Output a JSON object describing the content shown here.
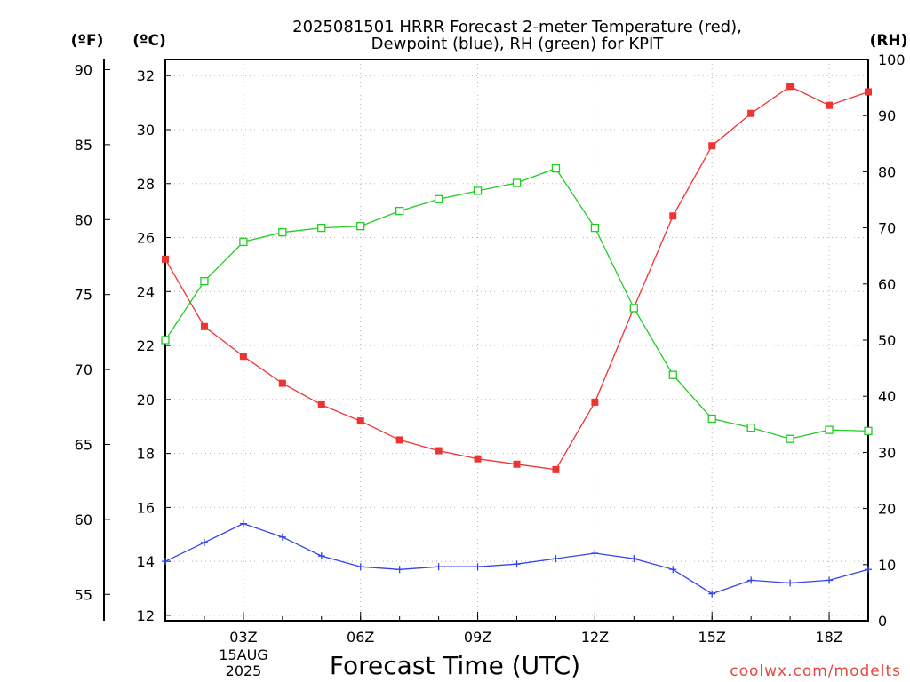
{
  "chart_data": {
    "type": "line",
    "title_line1": "2025081501 HRRR Forecast 2-meter Temperature (red),",
    "title_line2": "Dewpoint (blue), RH (green) for KPIT",
    "xlabel": "Forecast Time (UTC)",
    "credit": "coolwx.com/modelts",
    "units": {
      "fahrenheit": "(ºF)",
      "celsius": "(ºC)",
      "rh": "(RH)"
    },
    "x_hours": [
      1,
      2,
      3,
      4,
      5,
      6,
      7,
      8,
      9,
      10,
      11,
      12,
      13,
      14,
      15,
      16,
      17,
      18,
      19
    ],
    "x_ticks": [
      {
        "hour": 3,
        "label": "03Z"
      },
      {
        "hour": 6,
        "label": "06Z"
      },
      {
        "hour": 9,
        "label": "09Z"
      },
      {
        "hour": 12,
        "label": "12Z"
      },
      {
        "hour": 15,
        "label": "15Z"
      },
      {
        "hour": 18,
        "label": "18Z"
      }
    ],
    "date_label": [
      "15AUG",
      "2025"
    ],
    "xlim": [
      1,
      19
    ],
    "celsius_axis": {
      "ylim": [
        11.8,
        32.6
      ],
      "ticks": [
        12,
        14,
        16,
        18,
        20,
        22,
        24,
        26,
        28,
        30,
        32
      ]
    },
    "fahrenheit_axis": {
      "ticks": [
        55,
        60,
        65,
        70,
        75,
        80,
        85,
        90
      ]
    },
    "rh_axis": {
      "ylim": [
        0,
        100
      ],
      "ticks": [
        0,
        10,
        20,
        30,
        40,
        50,
        60,
        70,
        80,
        90,
        100
      ]
    },
    "grid": true,
    "series": [
      {
        "key": "temperature",
        "axis": "celsius",
        "color": "#ee3333",
        "marker": "filled-square",
        "values": [
          25.2,
          22.7,
          21.6,
          20.6,
          19.8,
          19.2,
          18.5,
          18.1,
          17.8,
          17.6,
          17.4,
          19.9,
          23.4,
          26.8,
          29.4,
          30.6,
          31.6,
          30.9,
          31.4
        ]
      },
      {
        "key": "dewpoint",
        "axis": "celsius",
        "color": "#3344ee",
        "marker": "plus",
        "values": [
          14.0,
          14.7,
          15.4,
          14.9,
          14.2,
          13.8,
          13.7,
          13.8,
          13.8,
          13.9,
          14.1,
          14.3,
          14.1,
          13.7,
          12.8,
          13.3,
          13.2,
          13.3,
          13.7
        ]
      },
      {
        "key": "rh",
        "axis": "rh",
        "color": "#22cc22",
        "marker": "open-square",
        "values": [
          50.0,
          60.5,
          67.5,
          69.2,
          70.0,
          70.3,
          73.0,
          75.1,
          76.6,
          78.0,
          80.6,
          70.0,
          55.7,
          43.8,
          36.0,
          34.4,
          32.4,
          34.0,
          33.8
        ]
      }
    ]
  }
}
